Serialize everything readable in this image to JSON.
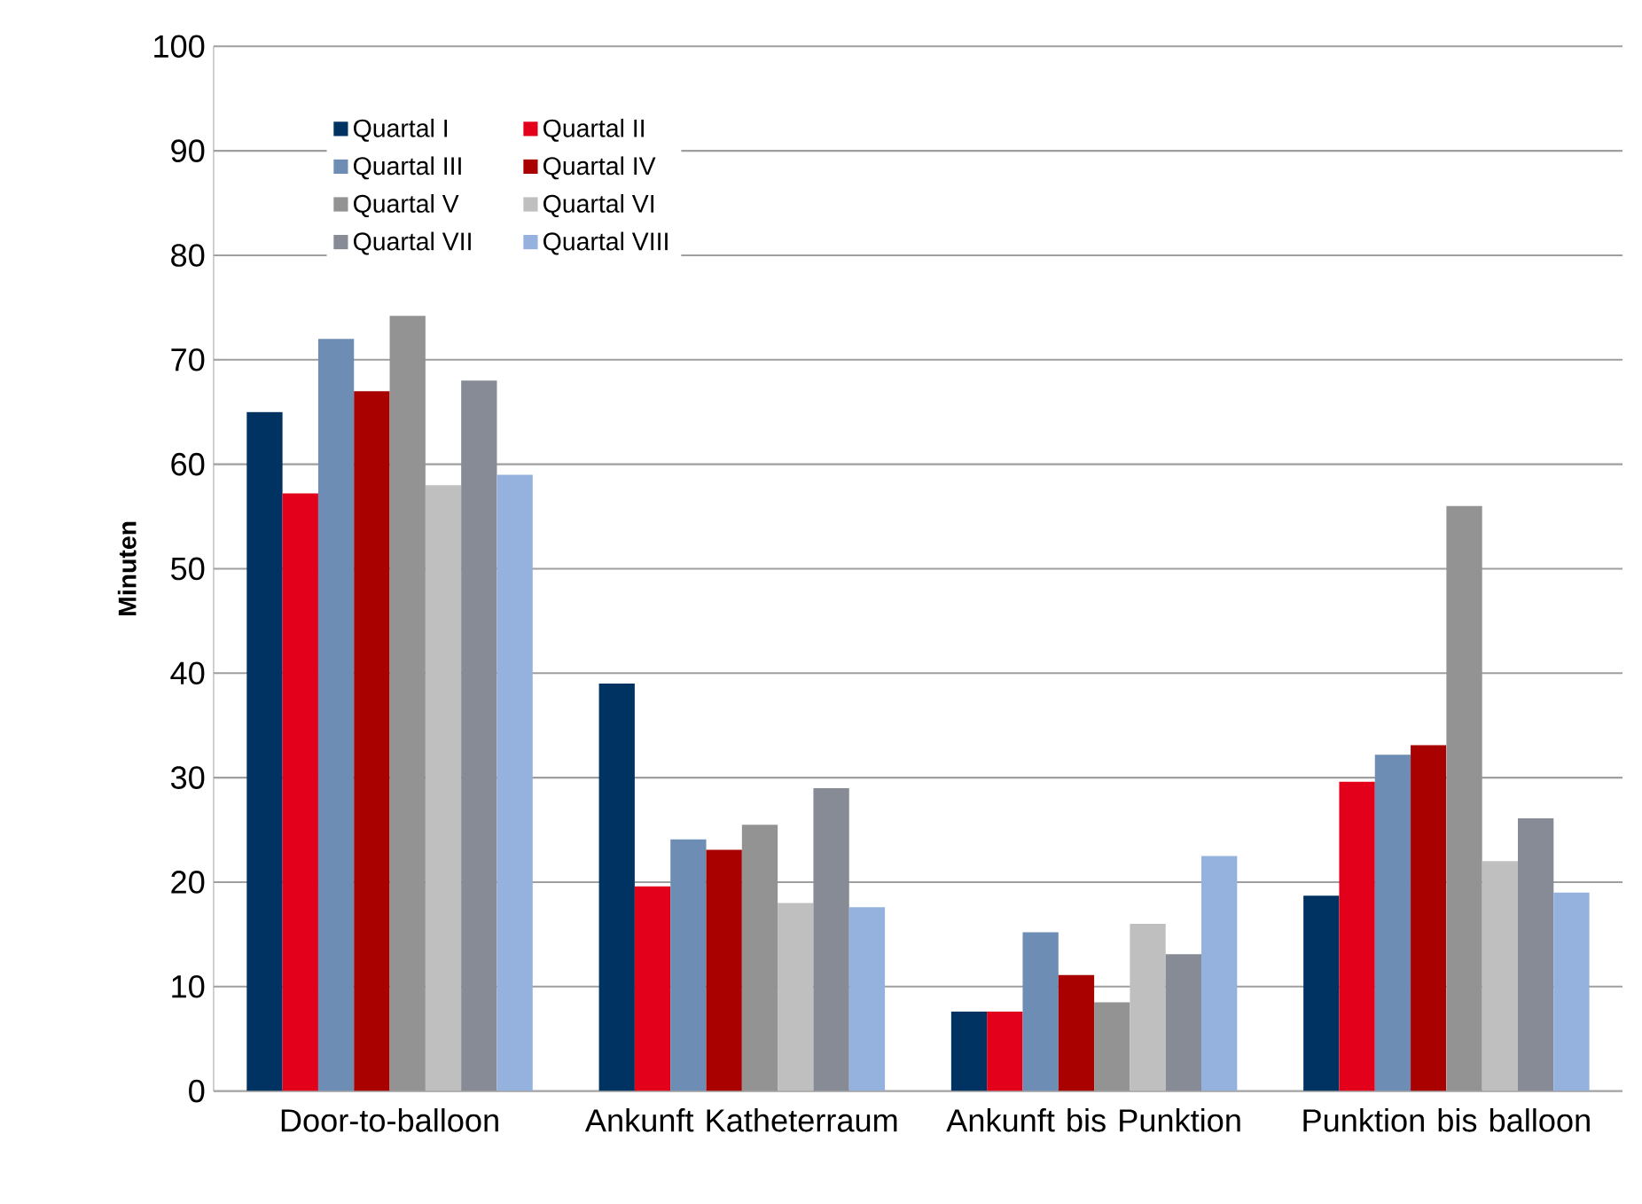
{
  "chart_data": {
    "type": "bar",
    "ylabel": "Minuten",
    "categories": [
      "Door-to-balloon",
      "Ankunft Katheterraum",
      "Ankunft bis Punktion",
      "Punktion bis balloon"
    ],
    "series": [
      {
        "name": "Quartal I",
        "color": "#003262",
        "values": [
          65,
          39.0,
          7.6,
          18.7
        ]
      },
      {
        "name": "Quartal II",
        "color": "#e2001a",
        "values": [
          57.2,
          19.6,
          7.6,
          29.6
        ]
      },
      {
        "name": "Quartal III",
        "color": "#6e8db4",
        "values": [
          72,
          24.1,
          15.2,
          32.2
        ]
      },
      {
        "name": "Quartal IV",
        "color": "#a90000",
        "values": [
          67,
          23.1,
          11.1,
          33.1
        ]
      },
      {
        "name": "Quartal V",
        "color": "#939393",
        "values": [
          74.2,
          25.5,
          8.5,
          56
        ]
      },
      {
        "name": "Quartal VI",
        "color": "#bfbfbf",
        "values": [
          58,
          18.0,
          16.0,
          22.0
        ]
      },
      {
        "name": "Quartal VII",
        "color": "#868b96",
        "values": [
          68,
          29.0,
          13.1,
          26.1
        ]
      },
      {
        "name": "Quartal VIII",
        "color": "#95b1de",
        "values": [
          59,
          17.6,
          22.5,
          19.0
        ]
      }
    ],
    "ylim": [
      0,
      100
    ],
    "yticks": [
      0,
      10,
      20,
      30,
      40,
      50,
      60,
      70,
      80,
      90,
      100
    ],
    "grid": "y",
    "legend": "top left"
  }
}
